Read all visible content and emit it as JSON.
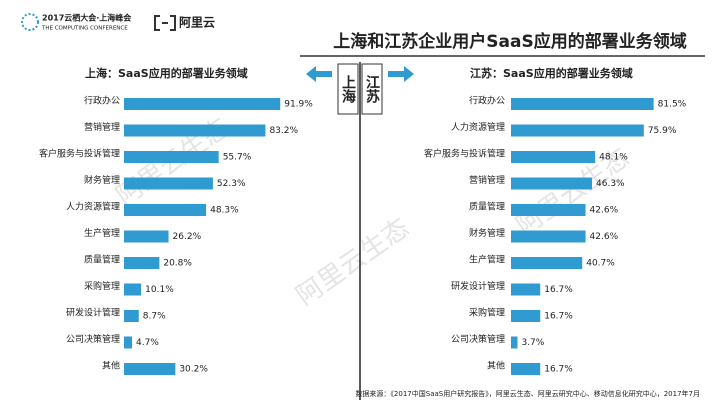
{
  "header": {
    "event": "2017云栖大会·上海峰会",
    "event_en": "THE COMPUTING CONFERENCE",
    "brand": "阿里云",
    "title": "上海和江苏企业用户SaaS应用的部署业务领域"
  },
  "divider_labels": [
    "上海",
    "江苏"
  ],
  "watermark": "阿里云生态",
  "source": "数据来源：《2017中国SaaS用户研究报告》，阿里云生态、阿里云研究中心、移动信息化研究中心，2017年7月",
  "chart_data": [
    {
      "type": "bar",
      "title": "上海：SaaS应用的部署业务领域",
      "color": "#2f9bd1",
      "categories": [
        "行政办公",
        "营销管理",
        "客户服务与投诉管理",
        "财务管理",
        "人力资源管理",
        "生产管理",
        "质量管理",
        "采购管理",
        "研发设计管理",
        "公司决策管理",
        "其他"
      ],
      "values": [
        91.9,
        83.2,
        55.7,
        52.3,
        48.3,
        26.2,
        20.8,
        10.1,
        8.7,
        4.7,
        30.2
      ],
      "value_labels": [
        "91.9%",
        "83.2%",
        "55.7%",
        "52.3%",
        "48.3%",
        "26.2%",
        "20.8%",
        "10.1%",
        "8.7%",
        "4.7%",
        "30.2%"
      ]
    },
    {
      "type": "bar",
      "title": "江苏：SaaS应用的部署业务领域",
      "color": "#2f9bd1",
      "categories": [
        "行政办公",
        "人力资源管理",
        "客户服务与投诉管理",
        "营销管理",
        "质量管理",
        "财务管理",
        "生产管理",
        "研发设计管理",
        "采购管理",
        "公司决策管理",
        "其他"
      ],
      "values": [
        81.5,
        75.9,
        48.1,
        46.3,
        42.6,
        42.6,
        40.7,
        16.7,
        16.7,
        3.7,
        16.7
      ],
      "value_labels": [
        "81.5%",
        "75.9%",
        "48.1%",
        "46.3%",
        "42.6%",
        "42.6%",
        "40.7%",
        "16.7%",
        "16.7%",
        "3.7%",
        "16.7%"
      ]
    }
  ]
}
